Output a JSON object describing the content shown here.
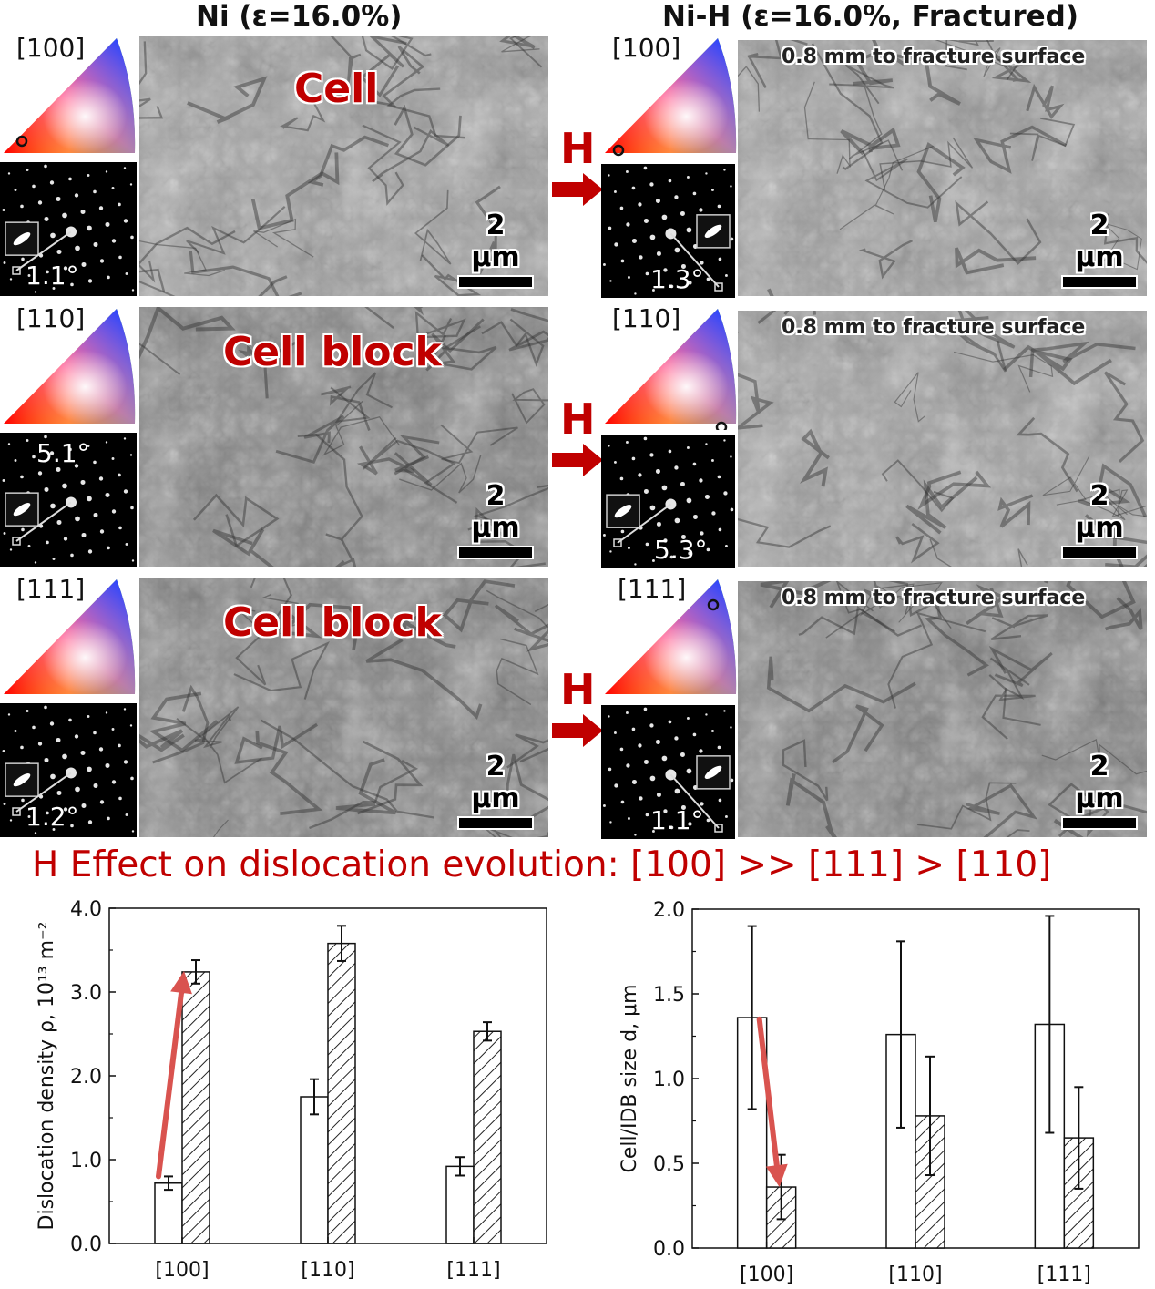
{
  "figure": {
    "left_title": "Ni (ε=16.0%)",
    "right_title": "Ni-H (ε=16.0%, Fractured)",
    "h_arrow_label": "H",
    "scale_label": "2 μm",
    "rows": [
      {
        "orientation": "[100]",
        "structure": "Cell",
        "ni_angle": "1.1°",
        "nih_angle": "1.3°",
        "distance": "0.8 mm to fracture surface"
      },
      {
        "orientation": "[110]",
        "structure": "Cell block",
        "ni_angle": "5.1°",
        "nih_angle": "5.3°",
        "distance": "0.8 mm to fracture surface"
      },
      {
        "orientation": "[111]",
        "structure": "Cell block",
        "ni_angle": "1.2°",
        "nih_angle": "1.1°",
        "distance": "0.8 mm to fracture surface"
      }
    ],
    "effect_text": "H Effect on dislocation evolution: [100] >> [111] > [110]",
    "colors": {
      "accent_red": "#c00000",
      "arrow_red": "#d9534f"
    }
  },
  "chart_data": [
    {
      "type": "bar",
      "categories": [
        "[100]",
        "[110]",
        "[111]"
      ],
      "ylabel": "Dislocation density ρ, 10¹³ m⁻²",
      "ylim": [
        0,
        4.0
      ],
      "yticks": [
        "0.0",
        "1.0",
        "2.0",
        "3.0",
        "4.0"
      ],
      "series": [
        {
          "pattern": "open",
          "values": [
            0.72,
            1.75,
            0.92
          ],
          "errors": [
            0.08,
            0.21,
            0.11
          ]
        },
        {
          "pattern": "hatched",
          "values": [
            3.24,
            3.58,
            2.53
          ],
          "errors": [
            0.14,
            0.21,
            0.11
          ]
        }
      ],
      "annotation": {
        "type": "arrow",
        "from_category": "[100]",
        "from_value": 0.8,
        "to_value": 3.25,
        "direction": "up"
      }
    },
    {
      "type": "bar",
      "categories": [
        "[100]",
        "[110]",
        "[111]"
      ],
      "ylabel": "Cell/IDB size d, μm",
      "ylim": [
        0,
        2.0
      ],
      "yticks": [
        "0.0",
        "0.5",
        "1.0",
        "1.5",
        "2.0"
      ],
      "series": [
        {
          "pattern": "open",
          "values": [
            1.36,
            1.26,
            1.32
          ],
          "errors": [
            0.54,
            0.55,
            0.64
          ]
        },
        {
          "pattern": "hatched",
          "values": [
            0.36,
            0.78,
            0.65
          ],
          "errors": [
            0.19,
            0.35,
            0.3
          ]
        }
      ],
      "annotation": {
        "type": "arrow",
        "from_category": "[100]",
        "from_value": 1.35,
        "to_value": 0.36,
        "direction": "down"
      }
    }
  ]
}
